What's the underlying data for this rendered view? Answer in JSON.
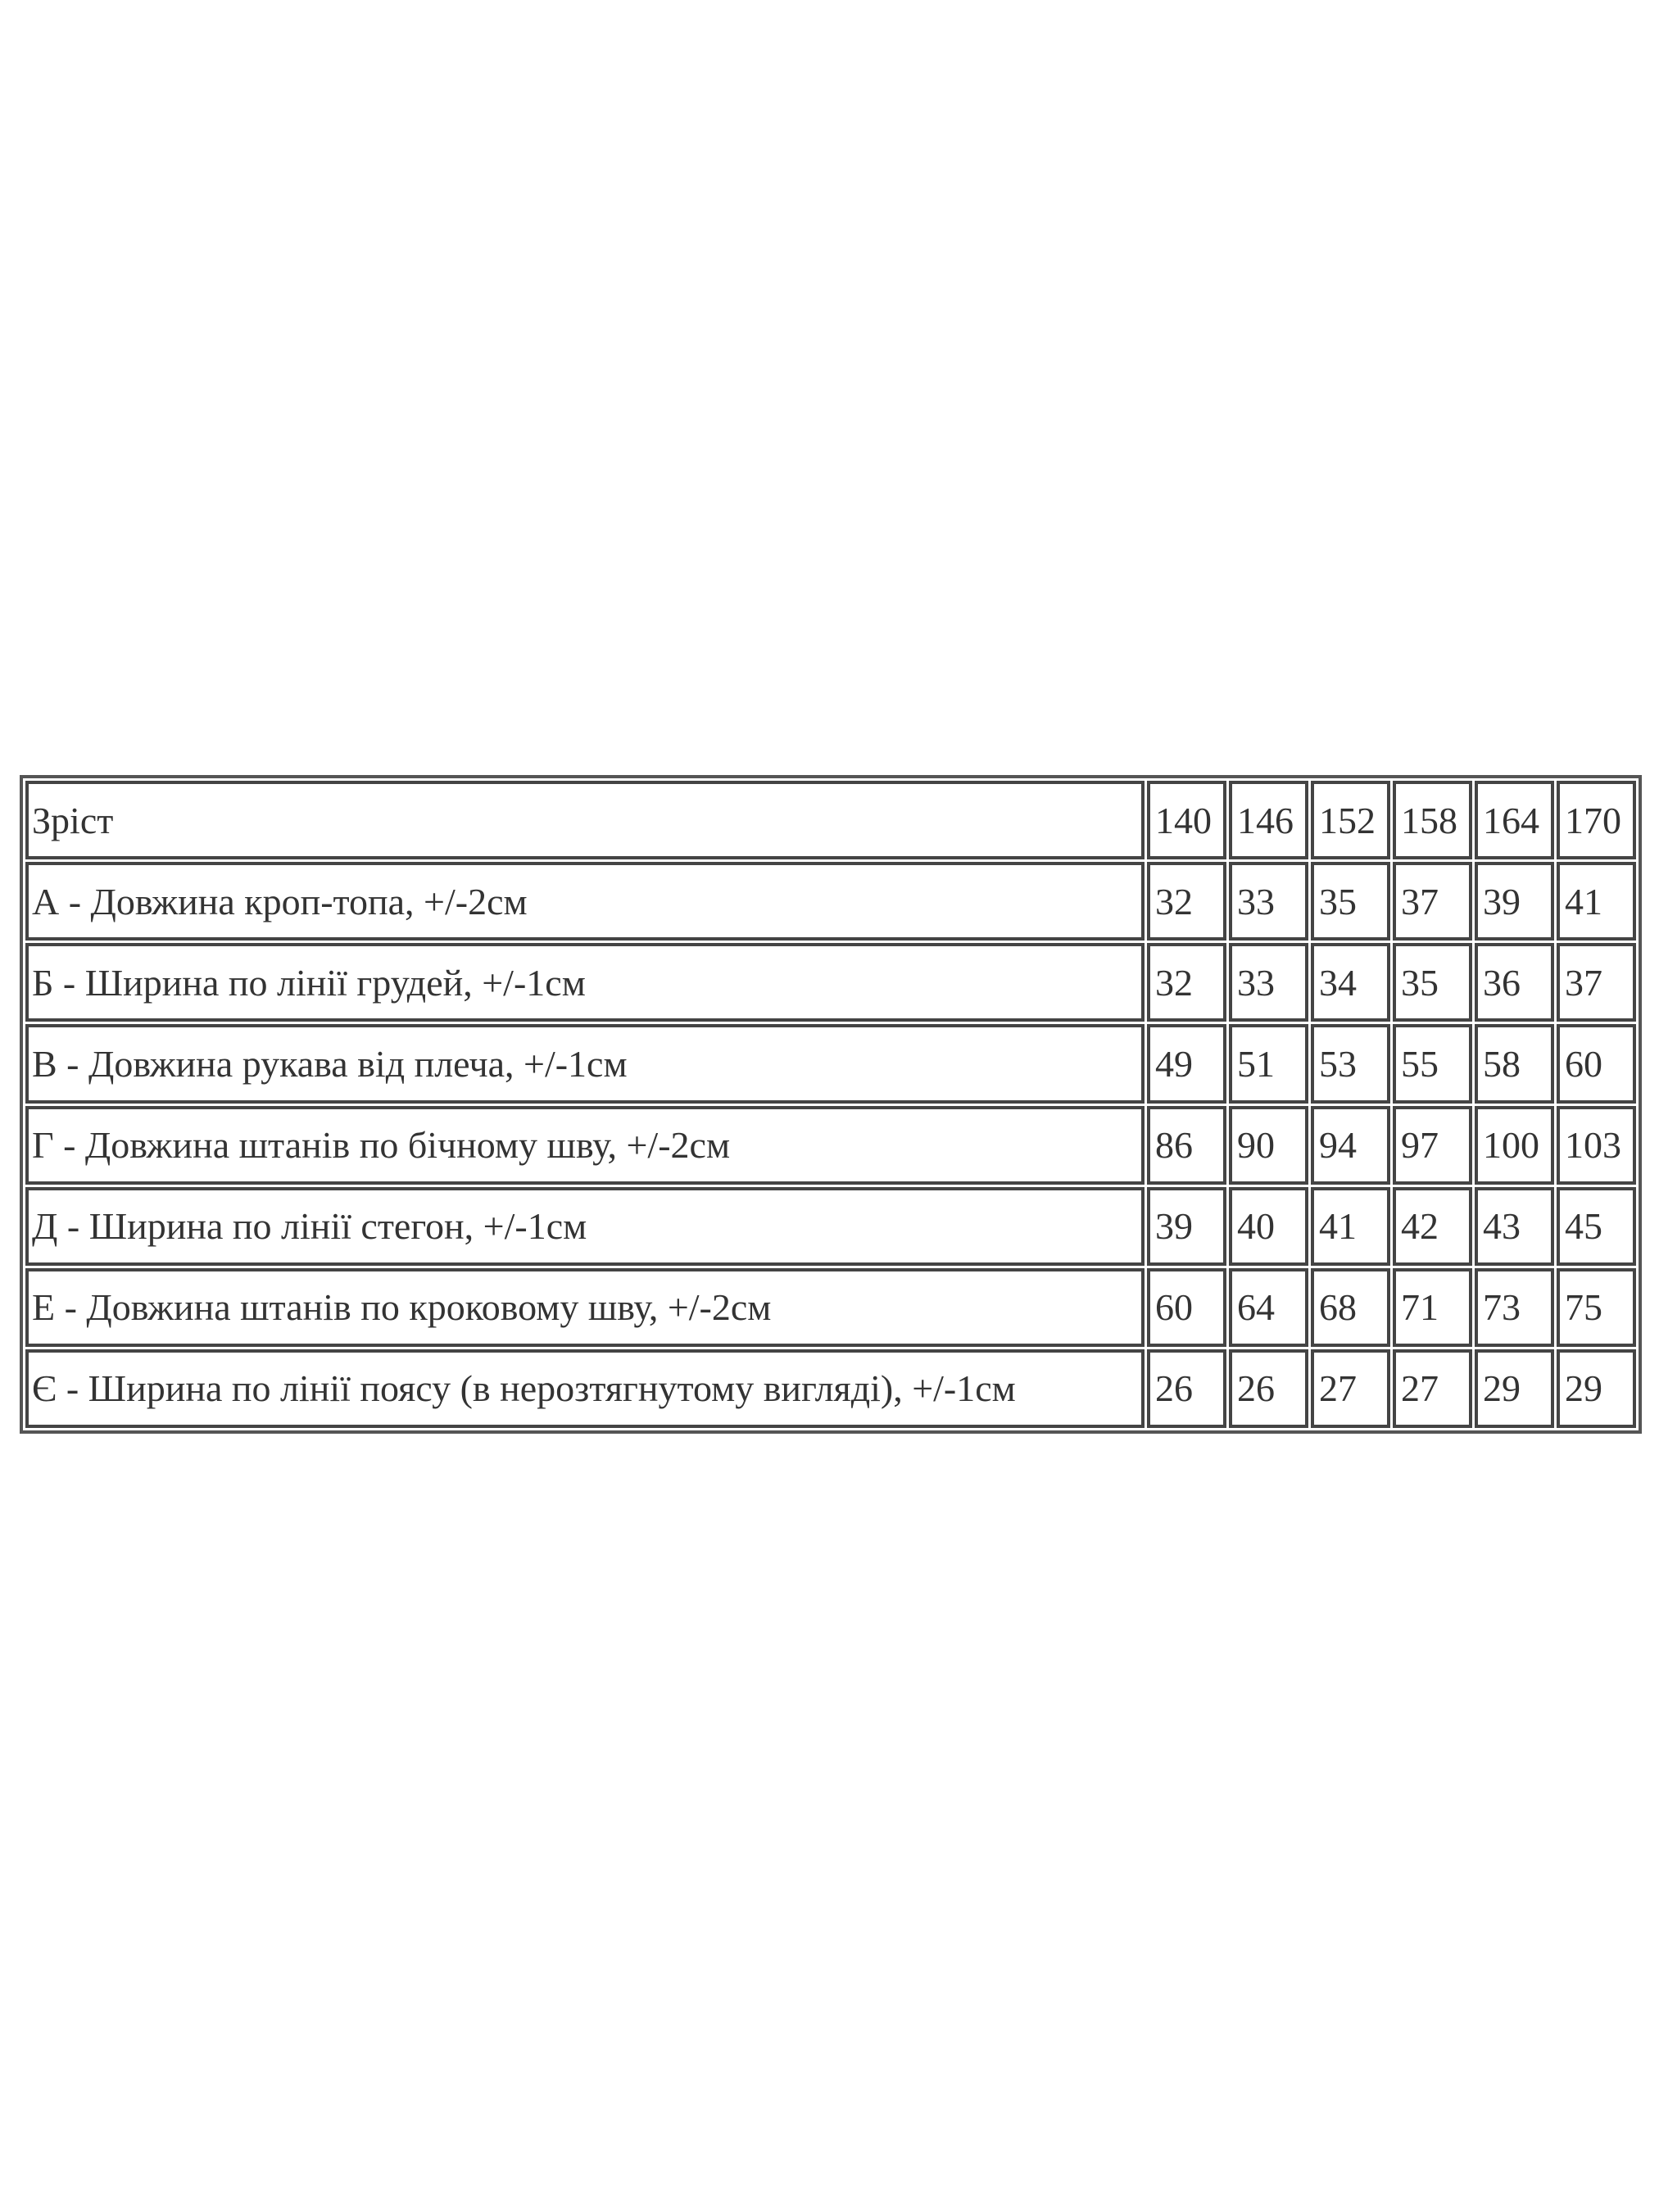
{
  "table": {
    "header": {
      "label": "Зріст",
      "sizes": [
        "140",
        "146",
        "152",
        "158",
        "164",
        "170"
      ]
    },
    "rows": [
      {
        "label": "А - Довжина кроп-топа, +/-2см",
        "values": [
          "32",
          "33",
          "35",
          "37",
          "39",
          "41"
        ]
      },
      {
        "label": "Б - Ширина по лінії грудей, +/-1см",
        "values": [
          "32",
          "33",
          "34",
          "35",
          "36",
          "37"
        ]
      },
      {
        "label": "В - Довжина рукава від плеча, +/-1см",
        "values": [
          "49",
          "51",
          "53",
          "55",
          "58",
          "60"
        ]
      },
      {
        "label": "Г - Довжина штанів по бічному шву, +/-2см",
        "values": [
          "86",
          "90",
          "94",
          "97",
          "100",
          "103"
        ]
      },
      {
        "label": "Д - Ширина по лінії стегон, +/-1см",
        "values": [
          "39",
          "40",
          "41",
          "42",
          "43",
          "45"
        ]
      },
      {
        "label": "Е - Довжина штанів по кроковому шву, +/-2см",
        "values": [
          "60",
          "64",
          "68",
          "71",
          "73",
          "75"
        ]
      },
      {
        "label": "Є - Ширина по лінії поясу (в нерозтягнутому вигляді), +/-1см",
        "values": [
          "26",
          "26",
          "27",
          "27",
          "29",
          "29"
        ]
      }
    ]
  }
}
